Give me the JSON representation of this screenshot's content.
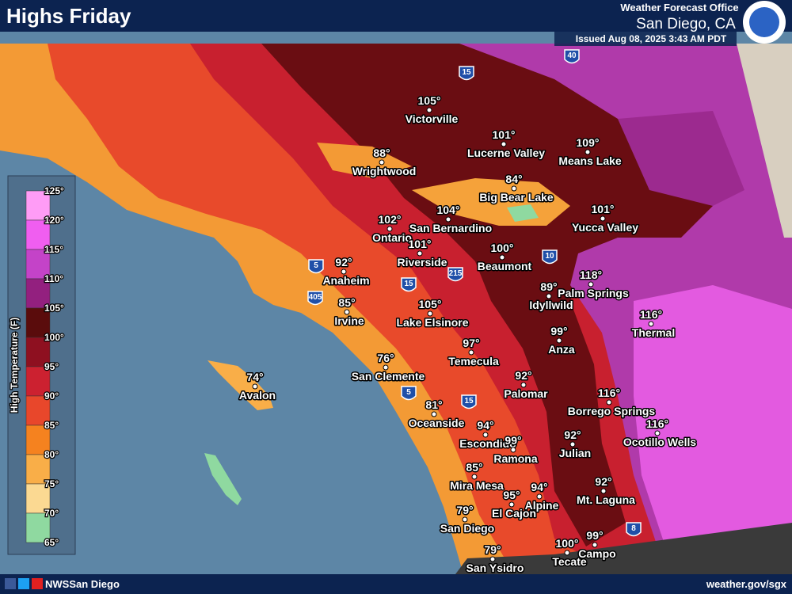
{
  "header": {
    "title": "Highs Friday",
    "office": "Weather Forecast Office",
    "location": "San Diego, CA",
    "issued": "Issued Aug 08, 2025 3:43 AM PDT"
  },
  "legend": {
    "title": "High Temperature (F)",
    "ticks": [
      "125°",
      "120°",
      "115°",
      "110°",
      "105°",
      "100°",
      "95°",
      "90°",
      "85°",
      "80°",
      "75°",
      "70°",
      "65°"
    ],
    "colors": [
      "#ff9cf6",
      "#f05ef0",
      "#c443c8",
      "#93207f",
      "#5a0c0c",
      "#8e1020",
      "#cc2130",
      "#e8472b",
      "#f5821f",
      "#f9ae48",
      "#fbd992",
      "#8fd9a0"
    ]
  },
  "cities": [
    {
      "name": "Victorville",
      "temp": "105°"
    },
    {
      "name": "Lucerne Valley",
      "temp": "101°"
    },
    {
      "name": "Means Lake",
      "temp": "109°"
    },
    {
      "name": "Wrightwood",
      "temp": "88°"
    },
    {
      "name": "Big Bear Lake",
      "temp": "84°"
    },
    {
      "name": "Ontario",
      "temp": "102°"
    },
    {
      "name": "San Bernardino",
      "temp": "104°"
    },
    {
      "name": "Yucca Valley",
      "temp": "101°"
    },
    {
      "name": "Riverside",
      "temp": "101°"
    },
    {
      "name": "Beaumont",
      "temp": "100°"
    },
    {
      "name": "Anaheim",
      "temp": "92°"
    },
    {
      "name": "Palm Springs",
      "temp": "118°"
    },
    {
      "name": "Idyllwild",
      "temp": "89°"
    },
    {
      "name": "Irvine",
      "temp": "85°"
    },
    {
      "name": "Lake Elsinore",
      "temp": "105°"
    },
    {
      "name": "Thermal",
      "temp": "116°"
    },
    {
      "name": "Anza",
      "temp": "99°"
    },
    {
      "name": "Temecula",
      "temp": "97°"
    },
    {
      "name": "San Clemente",
      "temp": "76°"
    },
    {
      "name": "Avalon",
      "temp": "74°"
    },
    {
      "name": "Palomar",
      "temp": "92°"
    },
    {
      "name": "Borrego Springs",
      "temp": "116°"
    },
    {
      "name": "Oceanside",
      "temp": "81°"
    },
    {
      "name": "Ocotillo Wells",
      "temp": "116°"
    },
    {
      "name": "Escondido",
      "temp": "94°"
    },
    {
      "name": "Julian",
      "temp": "92°"
    },
    {
      "name": "Ramona",
      "temp": "99°"
    },
    {
      "name": "Mira Mesa",
      "temp": "85°"
    },
    {
      "name": "Mt. Laguna",
      "temp": "92°"
    },
    {
      "name": "Alpine",
      "temp": "94°"
    },
    {
      "name": "El Cajon",
      "temp": "95°"
    },
    {
      "name": "San Diego",
      "temp": "79°"
    },
    {
      "name": "Campo",
      "temp": "99°"
    },
    {
      "name": "Tecate",
      "temp": "100°"
    },
    {
      "name": "San Ysidro",
      "temp": "79°"
    }
  ],
  "highways": [
    "40",
    "15",
    "5",
    "405",
    "215",
    "15",
    "10",
    "5",
    "15",
    "8"
  ],
  "footer": {
    "social": "NWSSan Diego",
    "website": "weather.gov/sgx"
  }
}
